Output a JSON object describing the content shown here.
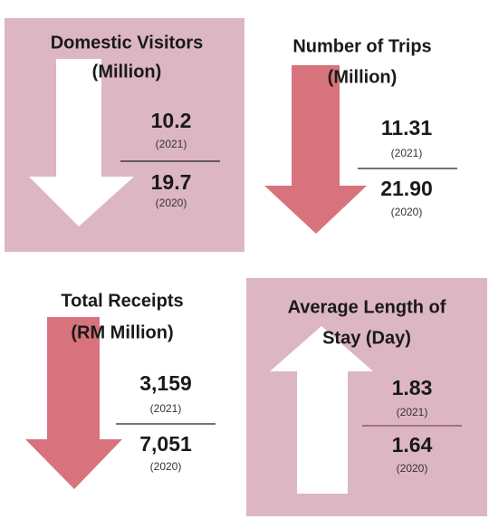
{
  "panels": [
    {
      "title": [
        "Domestic Visitors",
        "(Million)"
      ],
      "current": {
        "value": "10.2",
        "year": "(2021)"
      },
      "previous": {
        "value": "19.7",
        "year": "(2020)"
      }
    },
    {
      "title": [
        "Number of Trips",
        "(Million)"
      ],
      "current": {
        "value": "11.31",
        "year": "(2021)"
      },
      "previous": {
        "value": "21.90",
        "year": "(2020)"
      }
    },
    {
      "title": [
        "Total Receipts",
        "(RM Million)"
      ],
      "current": {
        "value": "3,159",
        "year": "(2021)"
      },
      "previous": {
        "value": "7,051",
        "year": "(2020)"
      }
    },
    {
      "title": [
        "Average Length of",
        "Stay (Day)"
      ],
      "current": {
        "value": "1.83",
        "year": "(2021)"
      },
      "previous": {
        "value": "1.64",
        "year": "(2020)"
      }
    }
  ]
}
